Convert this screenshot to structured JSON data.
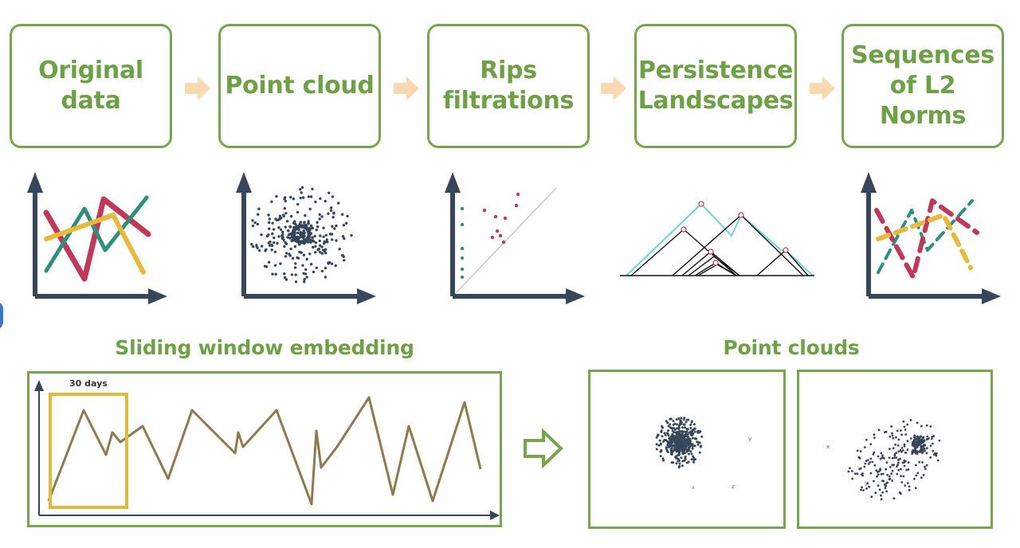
{
  "steps": [
    {
      "label": "Original\ndata"
    },
    {
      "label": "Point cloud"
    },
    {
      "label": "Rips\nfiltrations"
    },
    {
      "label": "Persistence\nLandscapes"
    },
    {
      "label": "Sequences\nof L2\nNorms"
    }
  ],
  "sections": {
    "sliding_title": "Sliding window embedding",
    "window_label": "30 days",
    "pointclouds_title": "Point clouds",
    "cloud_left_axes": [
      "y",
      "z",
      "x"
    ],
    "cloud_right_axes": [
      "x",
      "y"
    ]
  },
  "colors": {
    "green": "#77a54b",
    "green_text": "#6ea146",
    "arrow_fill": "#fbd9b0",
    "axis": "#37465a",
    "red": "#c0385a",
    "teal": "#2f8f7a",
    "yellow": "#e8b93a",
    "series": "#8e7a4f",
    "window": "#e1b93b",
    "cyan": "#6fd2e0"
  }
}
